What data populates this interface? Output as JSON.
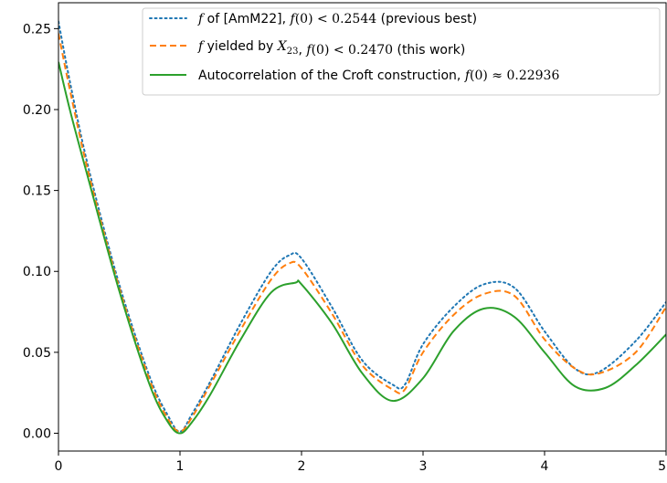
{
  "chart_data": {
    "type": "line",
    "title": "",
    "xlabel": "",
    "ylabel": "",
    "xlim": [
      0,
      5
    ],
    "ylim": [
      -0.011,
      0.266
    ],
    "grid": false,
    "legend_position": "top-right",
    "x_ticks": [
      0,
      1,
      2,
      3,
      4,
      5
    ],
    "x_tick_labels": [
      "0",
      "1",
      "2",
      "3",
      "4",
      "5"
    ],
    "y_ticks": [
      0.0,
      0.05,
      0.1,
      0.15,
      0.2,
      0.25
    ],
    "y_tick_labels": [
      "0.00",
      "0.05",
      "0.10",
      "0.15",
      "0.20",
      "0.25"
    ],
    "legend": [
      {
        "parts": [
          {
            "text": "f",
            "style": "math"
          },
          {
            "text": " of [AmM22], ",
            "style": "text"
          },
          {
            "text": "f",
            "style": "math"
          },
          {
            "text": "(0) < 0.2544",
            "style": "mathup"
          },
          {
            "text": " (previous best)",
            "style": "text"
          }
        ]
      },
      {
        "parts": [
          {
            "text": "f",
            "style": "math"
          },
          {
            "text": " yielded by ",
            "style": "text"
          },
          {
            "text": "X",
            "style": "math"
          },
          {
            "text": "23",
            "style": "sub"
          },
          {
            "text": ", ",
            "style": "text"
          },
          {
            "text": "f",
            "style": "math"
          },
          {
            "text": "(0) < 0.2470",
            "style": "mathup"
          },
          {
            "text": " (this work)",
            "style": "text"
          }
        ]
      },
      {
        "parts": [
          {
            "text": "Autocorrelation of the Croft construction, ",
            "style": "text"
          },
          {
            "text": "f",
            "style": "math"
          },
          {
            "text": "(0) ≈ 0.22936",
            "style": "mathup"
          }
        ]
      }
    ],
    "series": [
      {
        "color": "#1f77b4",
        "dash": "dotted",
        "x": [
          0,
          0.1,
          0.25,
          0.5,
          0.75,
          0.9,
          1.0,
          1.1,
          1.25,
          1.5,
          1.75,
          1.9,
          2.0,
          2.25,
          2.5,
          2.75,
          2.85,
          3.0,
          3.25,
          3.5,
          3.75,
          4.0,
          4.25,
          4.45,
          4.75,
          5.0
        ],
        "y": [
          0.2544,
          0.215,
          0.163,
          0.092,
          0.035,
          0.011,
          0.001,
          0.012,
          0.032,
          0.068,
          0.1,
          0.11,
          0.108,
          0.078,
          0.045,
          0.03,
          0.03,
          0.055,
          0.078,
          0.092,
          0.09,
          0.063,
          0.04,
          0.038,
          0.057,
          0.081
        ]
      },
      {
        "color": "#ff7f0e",
        "dash": "dashed",
        "x": [
          0,
          0.1,
          0.25,
          0.5,
          0.75,
          0.9,
          1.0,
          1.1,
          1.25,
          1.5,
          1.75,
          1.9,
          2.0,
          2.25,
          2.5,
          2.75,
          2.85,
          3.0,
          3.25,
          3.5,
          3.75,
          4.0,
          4.25,
          4.45,
          4.75,
          5.0
        ],
        "y": [
          0.247,
          0.21,
          0.16,
          0.09,
          0.033,
          0.009,
          0.001,
          0.01,
          0.03,
          0.064,
          0.095,
          0.105,
          0.102,
          0.074,
          0.042,
          0.027,
          0.027,
          0.05,
          0.073,
          0.086,
          0.085,
          0.058,
          0.04,
          0.037,
          0.05,
          0.078
        ]
      },
      {
        "color": "#2ca02c",
        "dash": "solid",
        "x": [
          0,
          0.1,
          0.25,
          0.5,
          0.75,
          0.9,
          1.0,
          1.1,
          1.25,
          1.5,
          1.75,
          1.95,
          2.0,
          2.25,
          2.5,
          2.75,
          3.0,
          3.25,
          3.5,
          3.75,
          4.0,
          4.25,
          4.5,
          4.75,
          5.0
        ],
        "y": [
          0.2294,
          0.198,
          0.156,
          0.088,
          0.03,
          0.007,
          0.0,
          0.007,
          0.024,
          0.058,
          0.087,
          0.093,
          0.092,
          0.068,
          0.037,
          0.02,
          0.034,
          0.063,
          0.077,
          0.072,
          0.05,
          0.029,
          0.028,
          0.042,
          0.061
        ]
      }
    ]
  }
}
